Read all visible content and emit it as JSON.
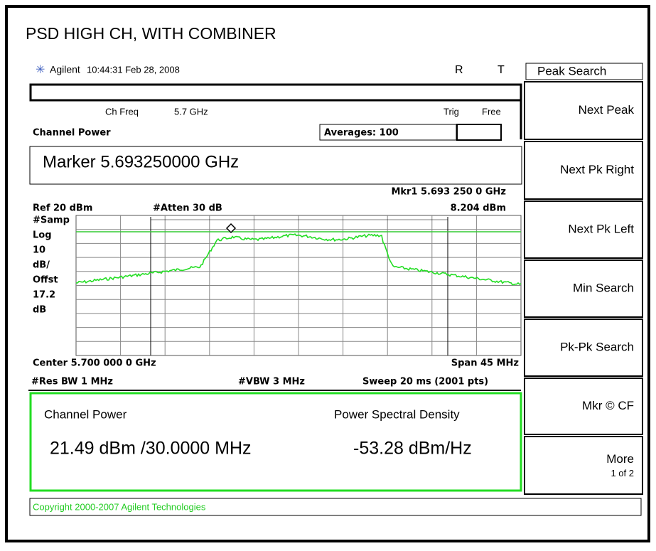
{
  "title": "PSD HIGH CH, WITH COMBINER",
  "header": {
    "brand": "Agilent",
    "time": "10:44:31  Feb 28, 2008",
    "r": "R",
    "t": "T"
  },
  "screen": {
    "ch_freq_label": "Ch Freq",
    "ch_freq": "5.7 GHz",
    "trig": "Trig",
    "free": "Free",
    "mode": "Channel Power",
    "averages": "Averages: 100",
    "marker": "Marker 5.693250000 GHz",
    "mkr1": "Mkr1  5.693 250 0 GHz",
    "ref": "Ref 20 dBm",
    "atten": "#Atten 30 dB",
    "mkr_level": "8.204 dBm",
    "left_labels": [
      "#Samp",
      "Log",
      "10",
      "dB/",
      "Offst",
      "17.2",
      "dB"
    ],
    "center": "Center 5.700 000 0 GHz",
    "span": "Span 45 MHz",
    "res_bw": "#Res BW 1 MHz",
    "vbw": "#VBW 3 MHz",
    "sweep": "Sweep 20 ms (2001 pts)"
  },
  "results": {
    "channel_power_label": "Channel Power",
    "psd_label": "Power Spectral Density",
    "channel_power": "21.49 dBm /30.0000 MHz",
    "psd": "-53.28 dBm/Hz"
  },
  "copyright": "Copyright 2000-2007 Agilent Technologies",
  "softkeys": {
    "menu": "Peak Search",
    "keys": [
      "Next Peak",
      "Next Pk Right",
      "Next Pk Left",
      "Min Search",
      "Pk-Pk Search",
      "Mkr © CF",
      "More"
    ],
    "more_page": "1 of 2"
  }
}
